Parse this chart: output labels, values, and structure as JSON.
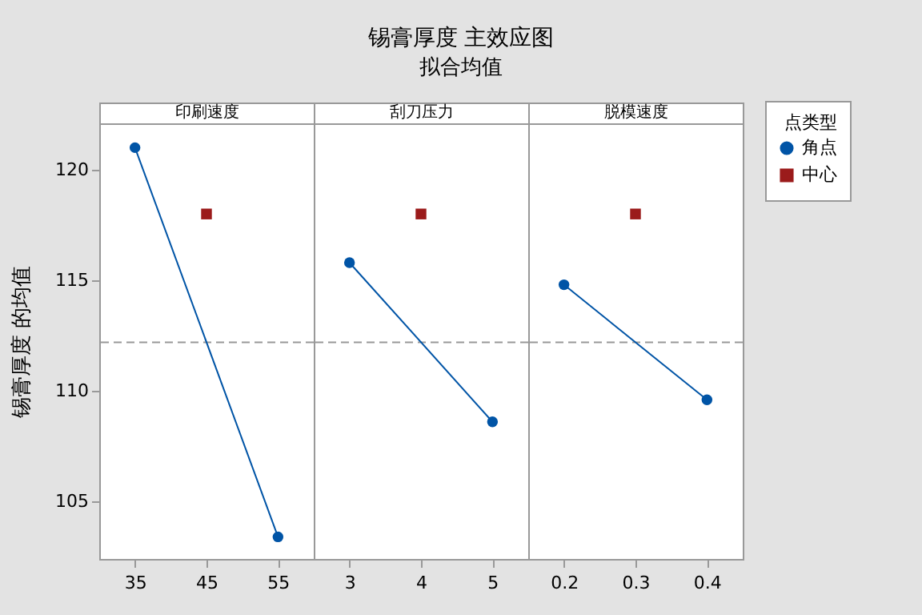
{
  "chart_data": [
    {
      "type": "other",
      "title": "锡膏厚度 主效应图",
      "subtitle": "拟合均值"
    },
    {
      "type": "line",
      "title": "印刷速度",
      "ylabel": "锡膏厚度 的均值",
      "xlim": [
        30,
        60
      ],
      "xticks": [
        35,
        45,
        55
      ],
      "ylim": [
        102.4,
        122.1
      ],
      "yticks": [
        105,
        110,
        115,
        120
      ],
      "grid": false,
      "ref_lines": [
        {
          "axis": "y",
          "value": 112.2,
          "color": "#999999",
          "line_style": "dashed"
        }
      ],
      "series": [
        {
          "type": "line",
          "marker": "circle",
          "color": "#0054a6",
          "x": [
            35,
            55
          ],
          "values": [
            121.0,
            103.4
          ]
        },
        {
          "type": "scatter",
          "marker": "square",
          "color": "#9b1b1b",
          "x": [
            45
          ],
          "values": [
            118.0
          ]
        }
      ]
    },
    {
      "type": "line",
      "title": "刮刀压力",
      "xlim": [
        2.5,
        5.5
      ],
      "xticks": [
        3,
        4,
        5
      ],
      "ylim": [
        102.4,
        122.1
      ],
      "tick_labels": "x",
      "grid": false,
      "ref_lines": [
        {
          "axis": "y",
          "value": 112.2,
          "color": "#999999",
          "line_style": "dashed"
        }
      ],
      "series": [
        {
          "type": "line",
          "marker": "circle",
          "color": "#0054a6",
          "x": [
            3,
            5
          ],
          "values": [
            115.8,
            108.6
          ]
        },
        {
          "type": "scatter",
          "marker": "square",
          "color": "#9b1b1b",
          "x": [
            4
          ],
          "values": [
            118.0
          ]
        }
      ]
    },
    {
      "type": "line",
      "title": "脱模速度",
      "xlim": [
        0.15,
        0.45
      ],
      "xticks": [
        0.2,
        0.3,
        0.4
      ],
      "ylim": [
        102.4,
        122.1
      ],
      "tick_labels": "x",
      "grid": false,
      "legend": "right",
      "legend_title": "点类型",
      "ref_lines": [
        {
          "axis": "y",
          "value": 112.2,
          "color": "#999999",
          "line_style": "dashed"
        }
      ],
      "series": [
        {
          "name": "角点",
          "type": "line",
          "marker": "circle",
          "color": "#0054a6",
          "x": [
            0.2,
            0.4
          ],
          "values": [
            114.8,
            109.6
          ]
        },
        {
          "name": "中心",
          "type": "scatter",
          "marker": "square",
          "color": "#9b1b1b",
          "x": [
            0.3
          ],
          "values": [
            118.0
          ]
        }
      ]
    }
  ]
}
